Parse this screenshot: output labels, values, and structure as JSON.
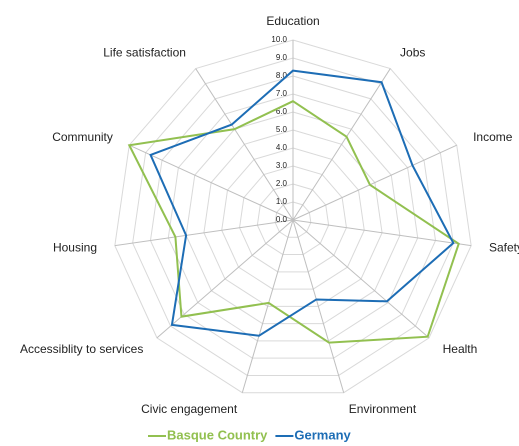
{
  "chart_data": {
    "type": "radar",
    "categories": [
      "Education",
      "Jobs",
      "Income",
      "Safety",
      "Health",
      "Environment",
      "Civic engagement",
      "Accessiblity to services",
      "Housing",
      "Community",
      "Life satisfaction"
    ],
    "series": [
      {
        "name": "Basque Country",
        "color": "#92c050",
        "values": [
          6.6,
          5.5,
          4.7,
          9.3,
          9.9,
          7.1,
          4.8,
          8.2,
          6.6,
          10.0,
          6.0
        ]
      },
      {
        "name": "Germany",
        "color": "#1d6db5",
        "values": [
          8.3,
          9.1,
          7.3,
          9.0,
          6.9,
          4.6,
          6.7,
          8.9,
          6.0,
          8.7,
          6.3
        ]
      }
    ],
    "ylim": [
      0,
      10
    ],
    "yticks": [
      {
        "value": 0,
        "label": "0.0"
      },
      {
        "value": 1,
        "label": "1.0"
      },
      {
        "value": 2,
        "label": "2.0"
      },
      {
        "value": 3,
        "label": "3.0"
      },
      {
        "value": 4,
        "label": "4.0"
      },
      {
        "value": 5,
        "label": "5.0"
      },
      {
        "value": 6,
        "label": "6.0"
      },
      {
        "value": 7,
        "label": "7.0"
      },
      {
        "value": 8,
        "label": "8.0"
      },
      {
        "value": 9,
        "label": "9.0"
      },
      {
        "value": 10,
        "label": "10.0"
      }
    ],
    "grid": true
  }
}
